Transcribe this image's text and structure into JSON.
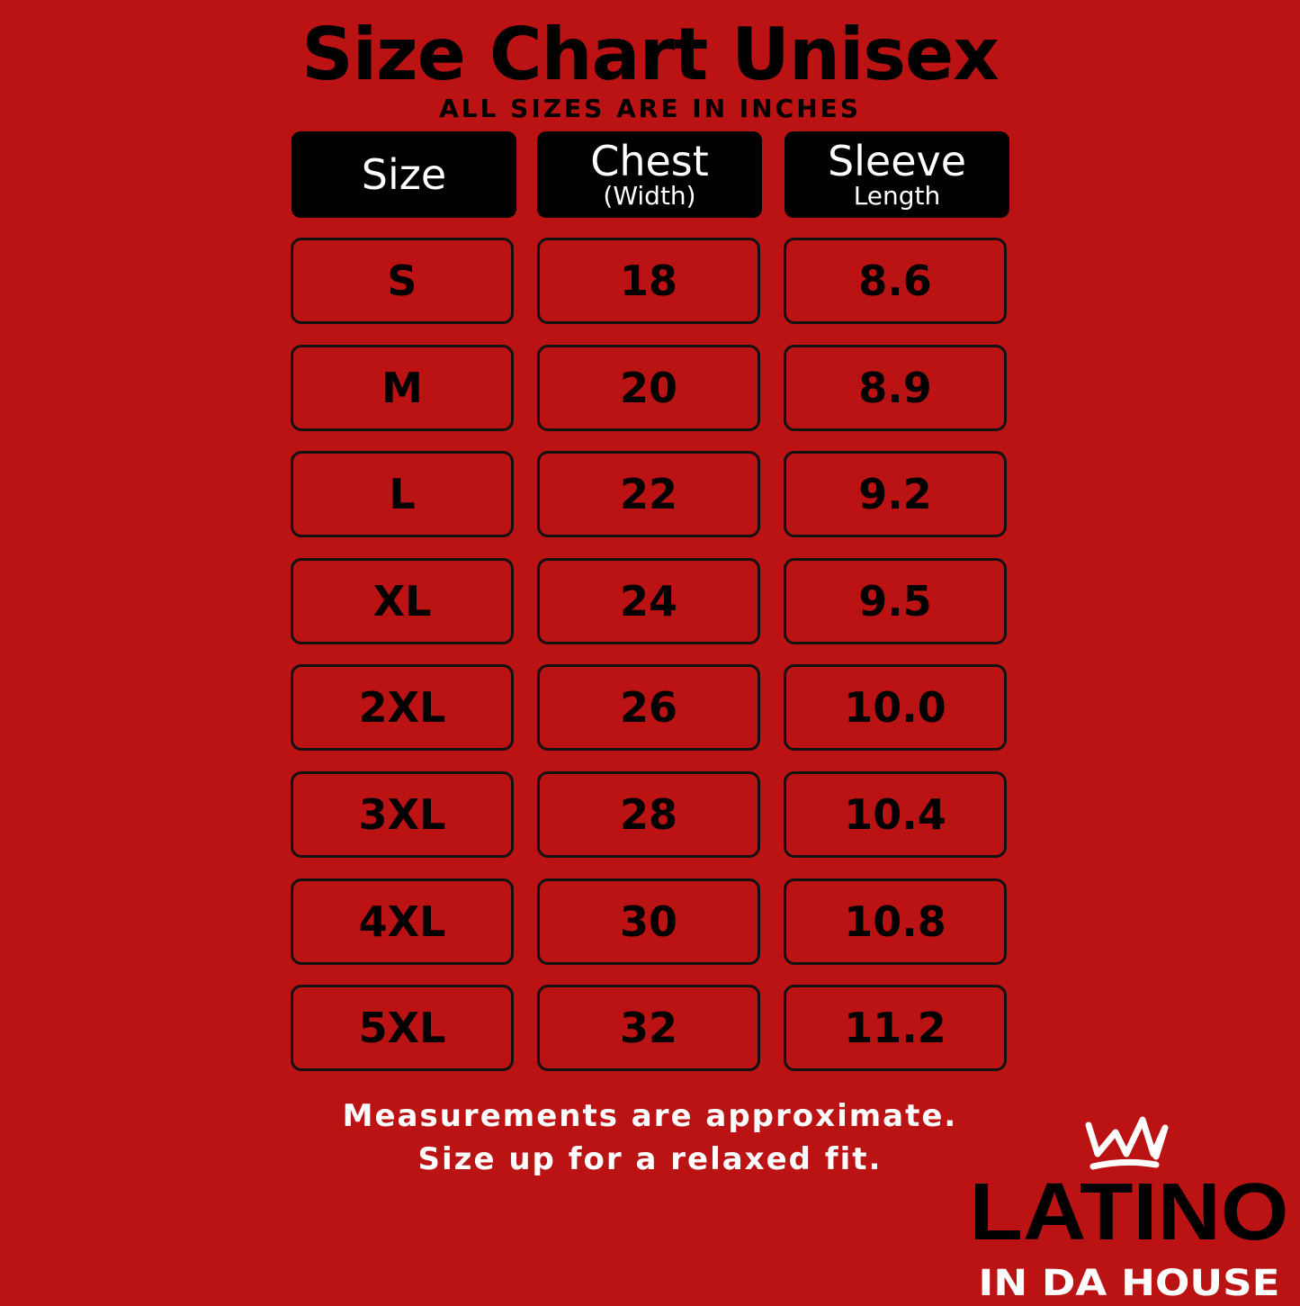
{
  "title": "Size Chart Unisex",
  "subtitle": "ALL SIZES ARE IN INCHES",
  "headers": [
    {
      "main": "Size",
      "sub": ""
    },
    {
      "main": "Chest",
      "sub": "(Width)"
    },
    {
      "main": "Sleeve",
      "sub": "Length"
    }
  ],
  "rows": [
    [
      "S",
      "18",
      "8.6"
    ],
    [
      "M",
      "20",
      "8.9"
    ],
    [
      "L",
      "22",
      "9.2"
    ],
    [
      "XL",
      "24",
      "9.5"
    ],
    [
      "2XL",
      "26",
      "10.0"
    ],
    [
      "3XL",
      "28",
      "10.4"
    ],
    [
      "4XL",
      "30",
      "10.8"
    ],
    [
      "5XL",
      "32",
      "11.2"
    ]
  ],
  "notes": [
    "Measurements are approximate.",
    "Size up for a relaxed fit."
  ],
  "logo": {
    "line1": "LATINO",
    "line2": "IN DA HOUSE",
    "icon": "crown-icon"
  },
  "colors": {
    "background": "#bb1213",
    "header": "#000000",
    "text_light": "#ffffff"
  }
}
